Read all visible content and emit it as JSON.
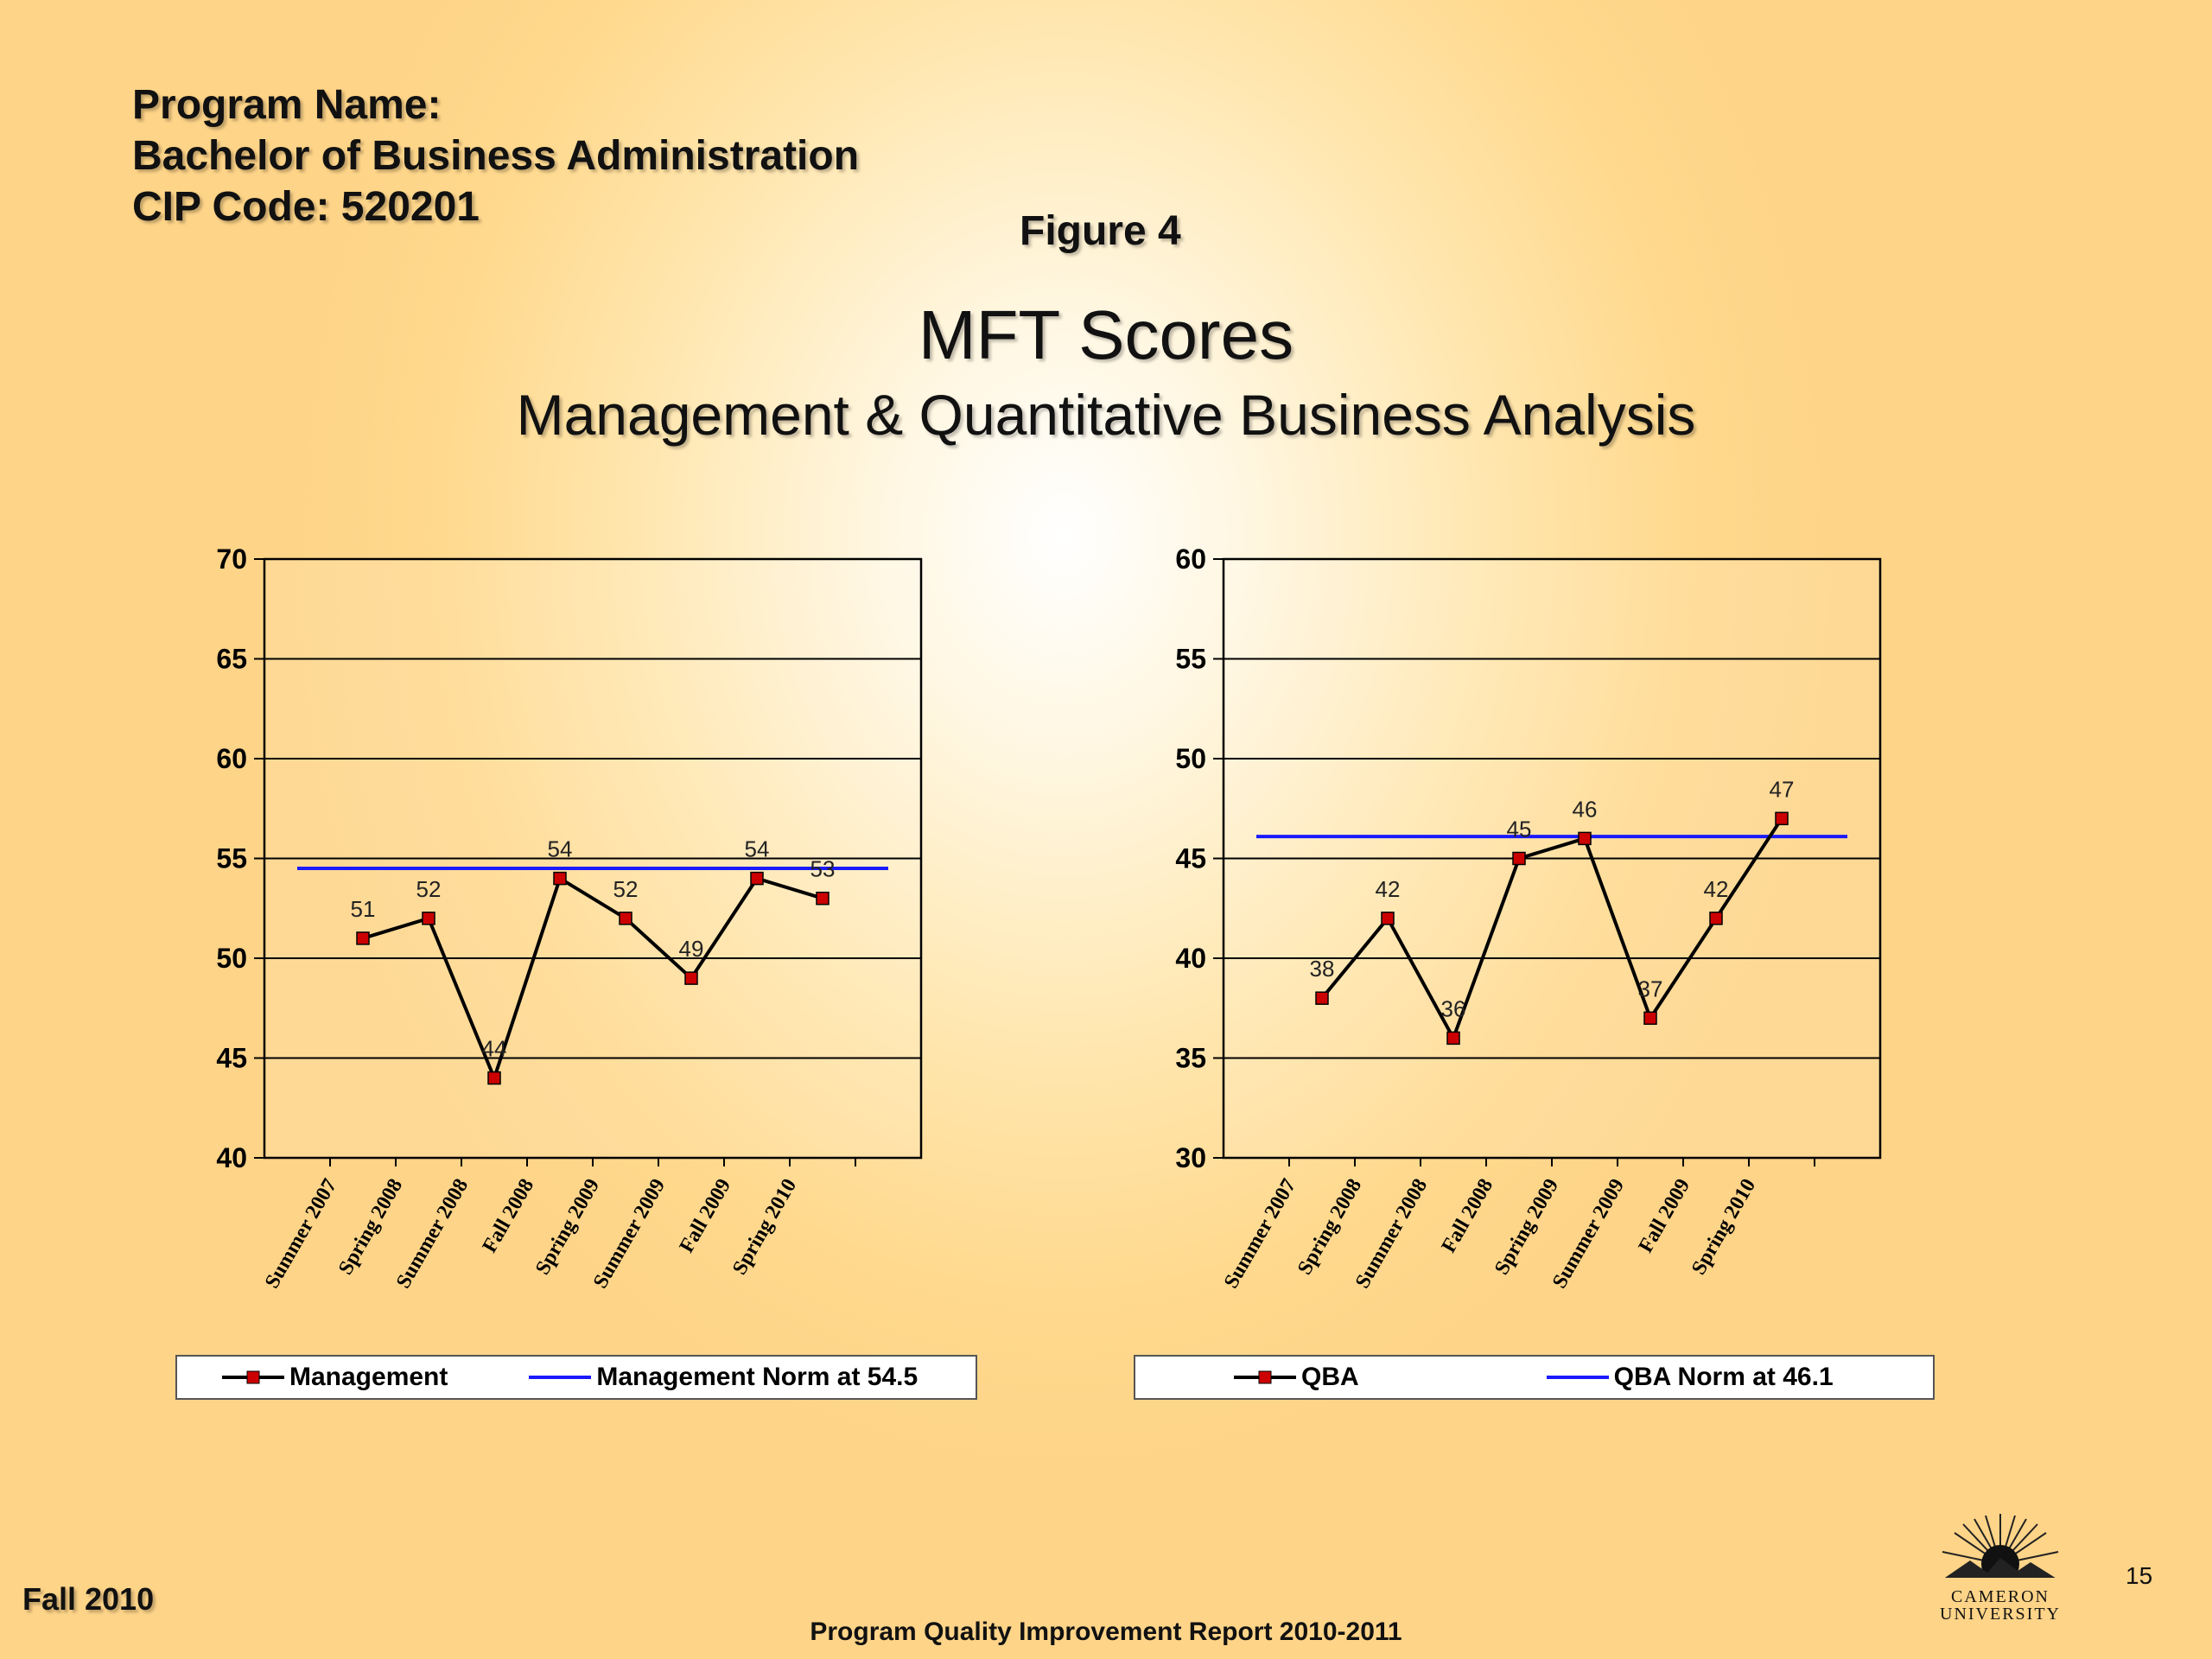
{
  "program": {
    "line1": "Program Name:",
    "line2": "Bachelor of Business Administration",
    "line3": "CIP Code: 520201"
  },
  "figure_label": "Figure 4",
  "title": "MFT Scores",
  "subtitle": "Management & Quantitative Business Analysis",
  "footer": {
    "left": "Fall 2010",
    "center": "Program Quality Improvement Report 2010-2011",
    "page": "15",
    "logo_name_line1": "CAMERON",
    "logo_name_line2": "UNIVERSITY"
  },
  "colors": {
    "series_line": "#000000",
    "marker": "#cc0000",
    "norm_line": "#1a1aff"
  },
  "chart_data": [
    {
      "type": "line",
      "categories": [
        "Summer 2007",
        "Spring 2008",
        "Summer 2008",
        "Fall 2008",
        "Spring 2009",
        "Summer 2009",
        "Fall 2009",
        "Spring 2010"
      ],
      "series": [
        {
          "name": "Management",
          "values": [
            51,
            52,
            44,
            54,
            52,
            49,
            54,
            53
          ]
        },
        {
          "name": "Management Norm at 54.5",
          "values": [
            54.5,
            54.5,
            54.5,
            54.5,
            54.5,
            54.5,
            54.5,
            54.5
          ]
        }
      ],
      "data_labels": [
        "51",
        "52",
        "44",
        "54",
        "52",
        "49",
        "54",
        "53"
      ],
      "ylim": [
        40,
        70
      ],
      "yticks": [
        40,
        45,
        50,
        55,
        60,
        65,
        70
      ],
      "grid": true,
      "legend_position": "bottom"
    },
    {
      "type": "line",
      "categories": [
        "Summer 2007",
        "Spring 2008",
        "Summer 2008",
        "Fall 2008",
        "Spring 2009",
        "Summer 2009",
        "Fall 2009",
        "Spring 2010"
      ],
      "series": [
        {
          "name": "QBA",
          "values": [
            38,
            42,
            36,
            45,
            46,
            37,
            42,
            47
          ]
        },
        {
          "name": "QBA Norm at 46.1",
          "values": [
            46.1,
            46.1,
            46.1,
            46.1,
            46.1,
            46.1,
            46.1,
            46.1
          ]
        }
      ],
      "data_labels": [
        "38",
        "42",
        "36",
        "45",
        "46",
        "37",
        "42",
        "47"
      ],
      "ylim": [
        30,
        60
      ],
      "yticks": [
        30,
        35,
        40,
        45,
        50,
        55,
        60
      ],
      "grid": true,
      "legend_position": "bottom"
    }
  ]
}
